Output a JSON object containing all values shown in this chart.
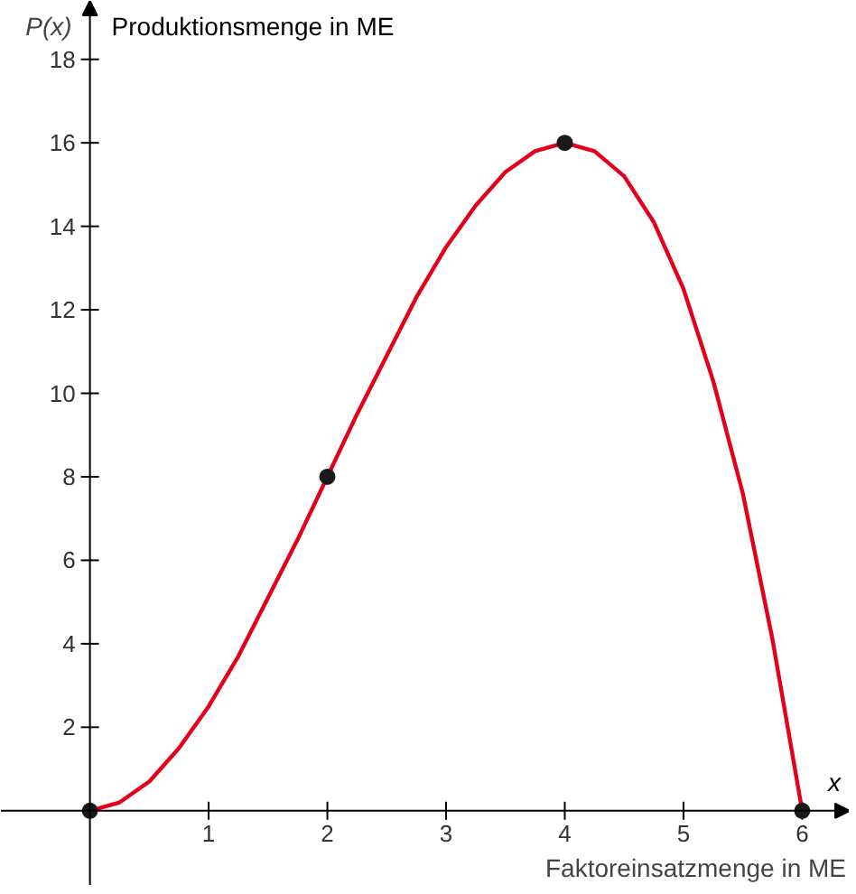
{
  "chart_data": {
    "type": "line",
    "xlabel": "Faktoreinsatzmenge in ME",
    "ylabel": "Produktionsmenge in ME",
    "annotations": [
      "P(x)",
      "x"
    ],
    "xlim": [
      -0.75,
      6.4
    ],
    "ylim": [
      -1.8,
      19.4
    ],
    "xticks": [
      1,
      2,
      3,
      4,
      5,
      6
    ],
    "yticks": [
      2,
      4,
      6,
      8,
      10,
      12,
      14,
      16,
      18
    ],
    "grid": false,
    "series": [
      {
        "color": "#e3001b",
        "x": [
          0,
          0.25,
          0.5,
          0.75,
          1,
          1.25,
          1.5,
          1.75,
          2,
          2.25,
          2.5,
          2.75,
          3,
          3.25,
          3.5,
          3.75,
          4,
          4.25,
          4.5,
          4.75,
          5,
          5.25,
          5.5,
          5.75,
          6
        ],
        "values": [
          0,
          0.2,
          0.7,
          1.5,
          2.5,
          3.7,
          5.1,
          6.5,
          8,
          9.5,
          10.9,
          12.3,
          13.5,
          14.5,
          15.3,
          15.8,
          16,
          15.8,
          15.2,
          14.1,
          12.5,
          10.3,
          7.6,
          4.1,
          0
        ],
        "line_style": "solid"
      },
      {
        "type": "scatter",
        "color": "#1a1a1a",
        "x": [
          0,
          2,
          4,
          6
        ],
        "values": [
          0,
          8,
          16,
          0
        ],
        "marker": "circle"
      }
    ]
  }
}
